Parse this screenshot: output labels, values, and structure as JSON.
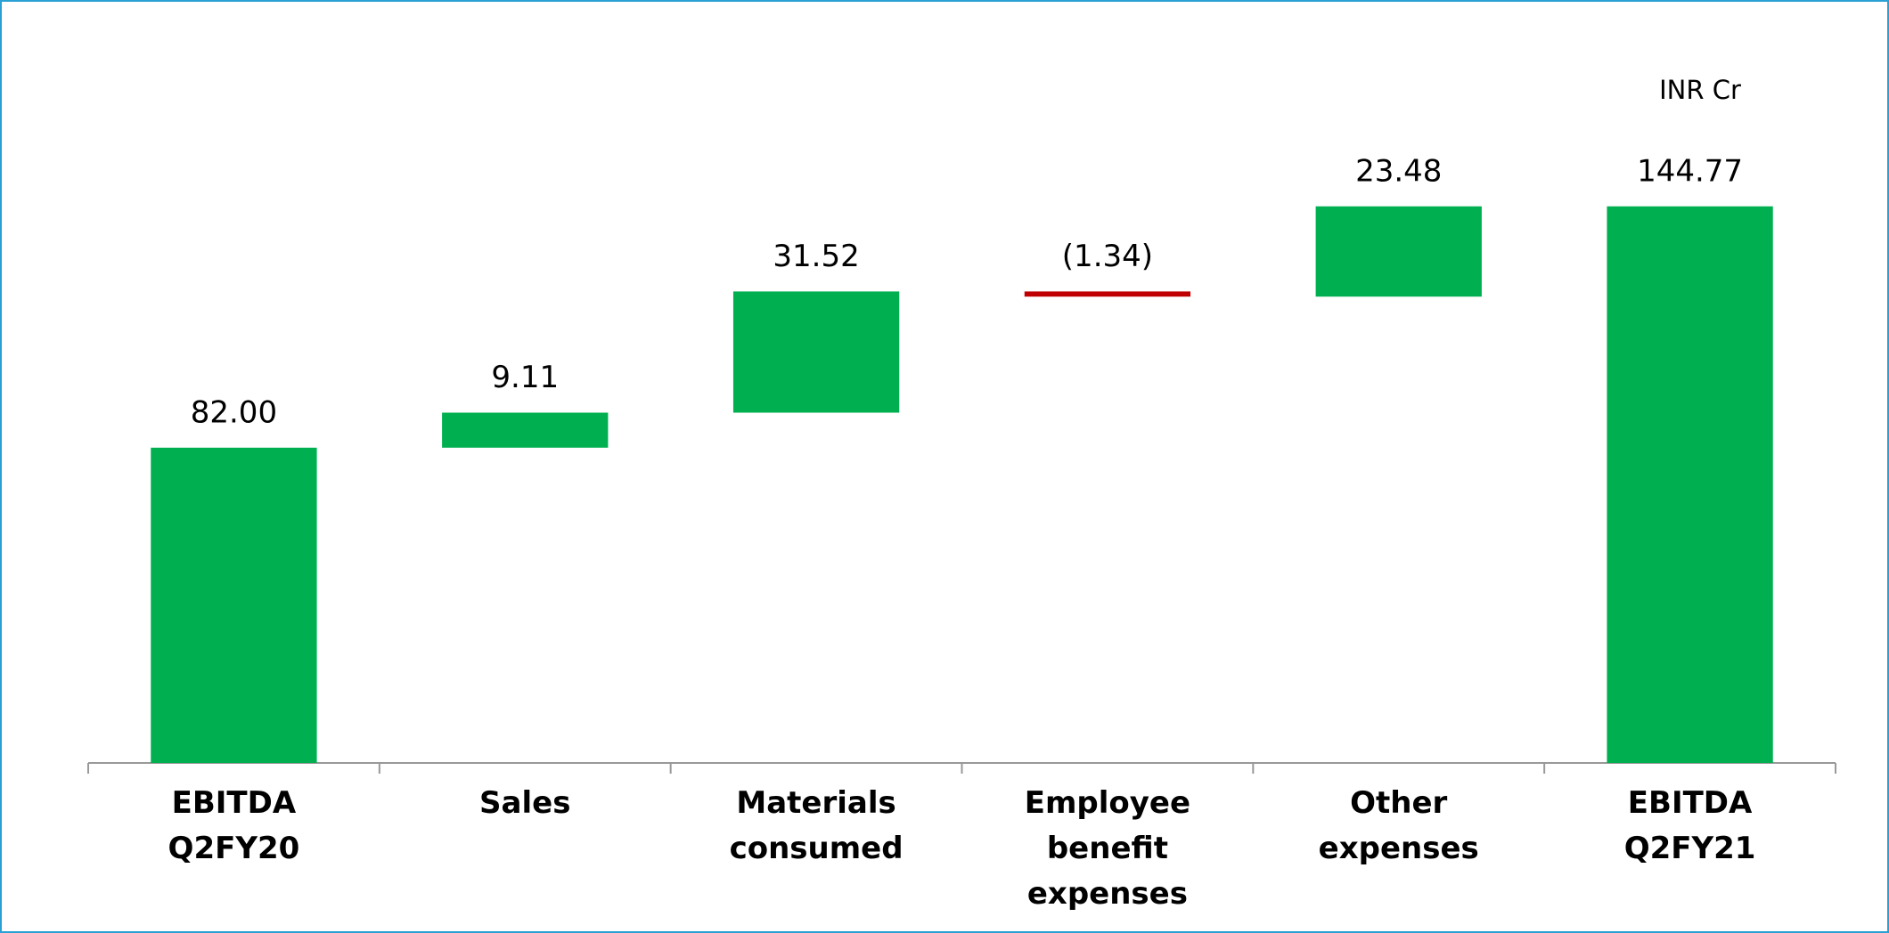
{
  "chart_data": {
    "type": "waterfall",
    "annotation": "INR Cr",
    "categories": [
      "EBITDA Q2FY20",
      "Sales",
      "Materials consumed",
      "Employee benefit expenses",
      "Other expenses",
      "EBITDA Q2FY21"
    ],
    "measures": [
      "absolute",
      "relative",
      "relative",
      "relative",
      "relative",
      "total"
    ],
    "values": [
      82.0,
      9.11,
      31.52,
      -1.34,
      23.48,
      144.77
    ],
    "value_labels": [
      "82.00",
      "9.11",
      "31.52",
      "(1.34)",
      "23.48",
      "144.77"
    ],
    "increase_color": "#00b050",
    "decrease_color": "#c00000",
    "ylim": [
      0,
      160
    ]
  }
}
